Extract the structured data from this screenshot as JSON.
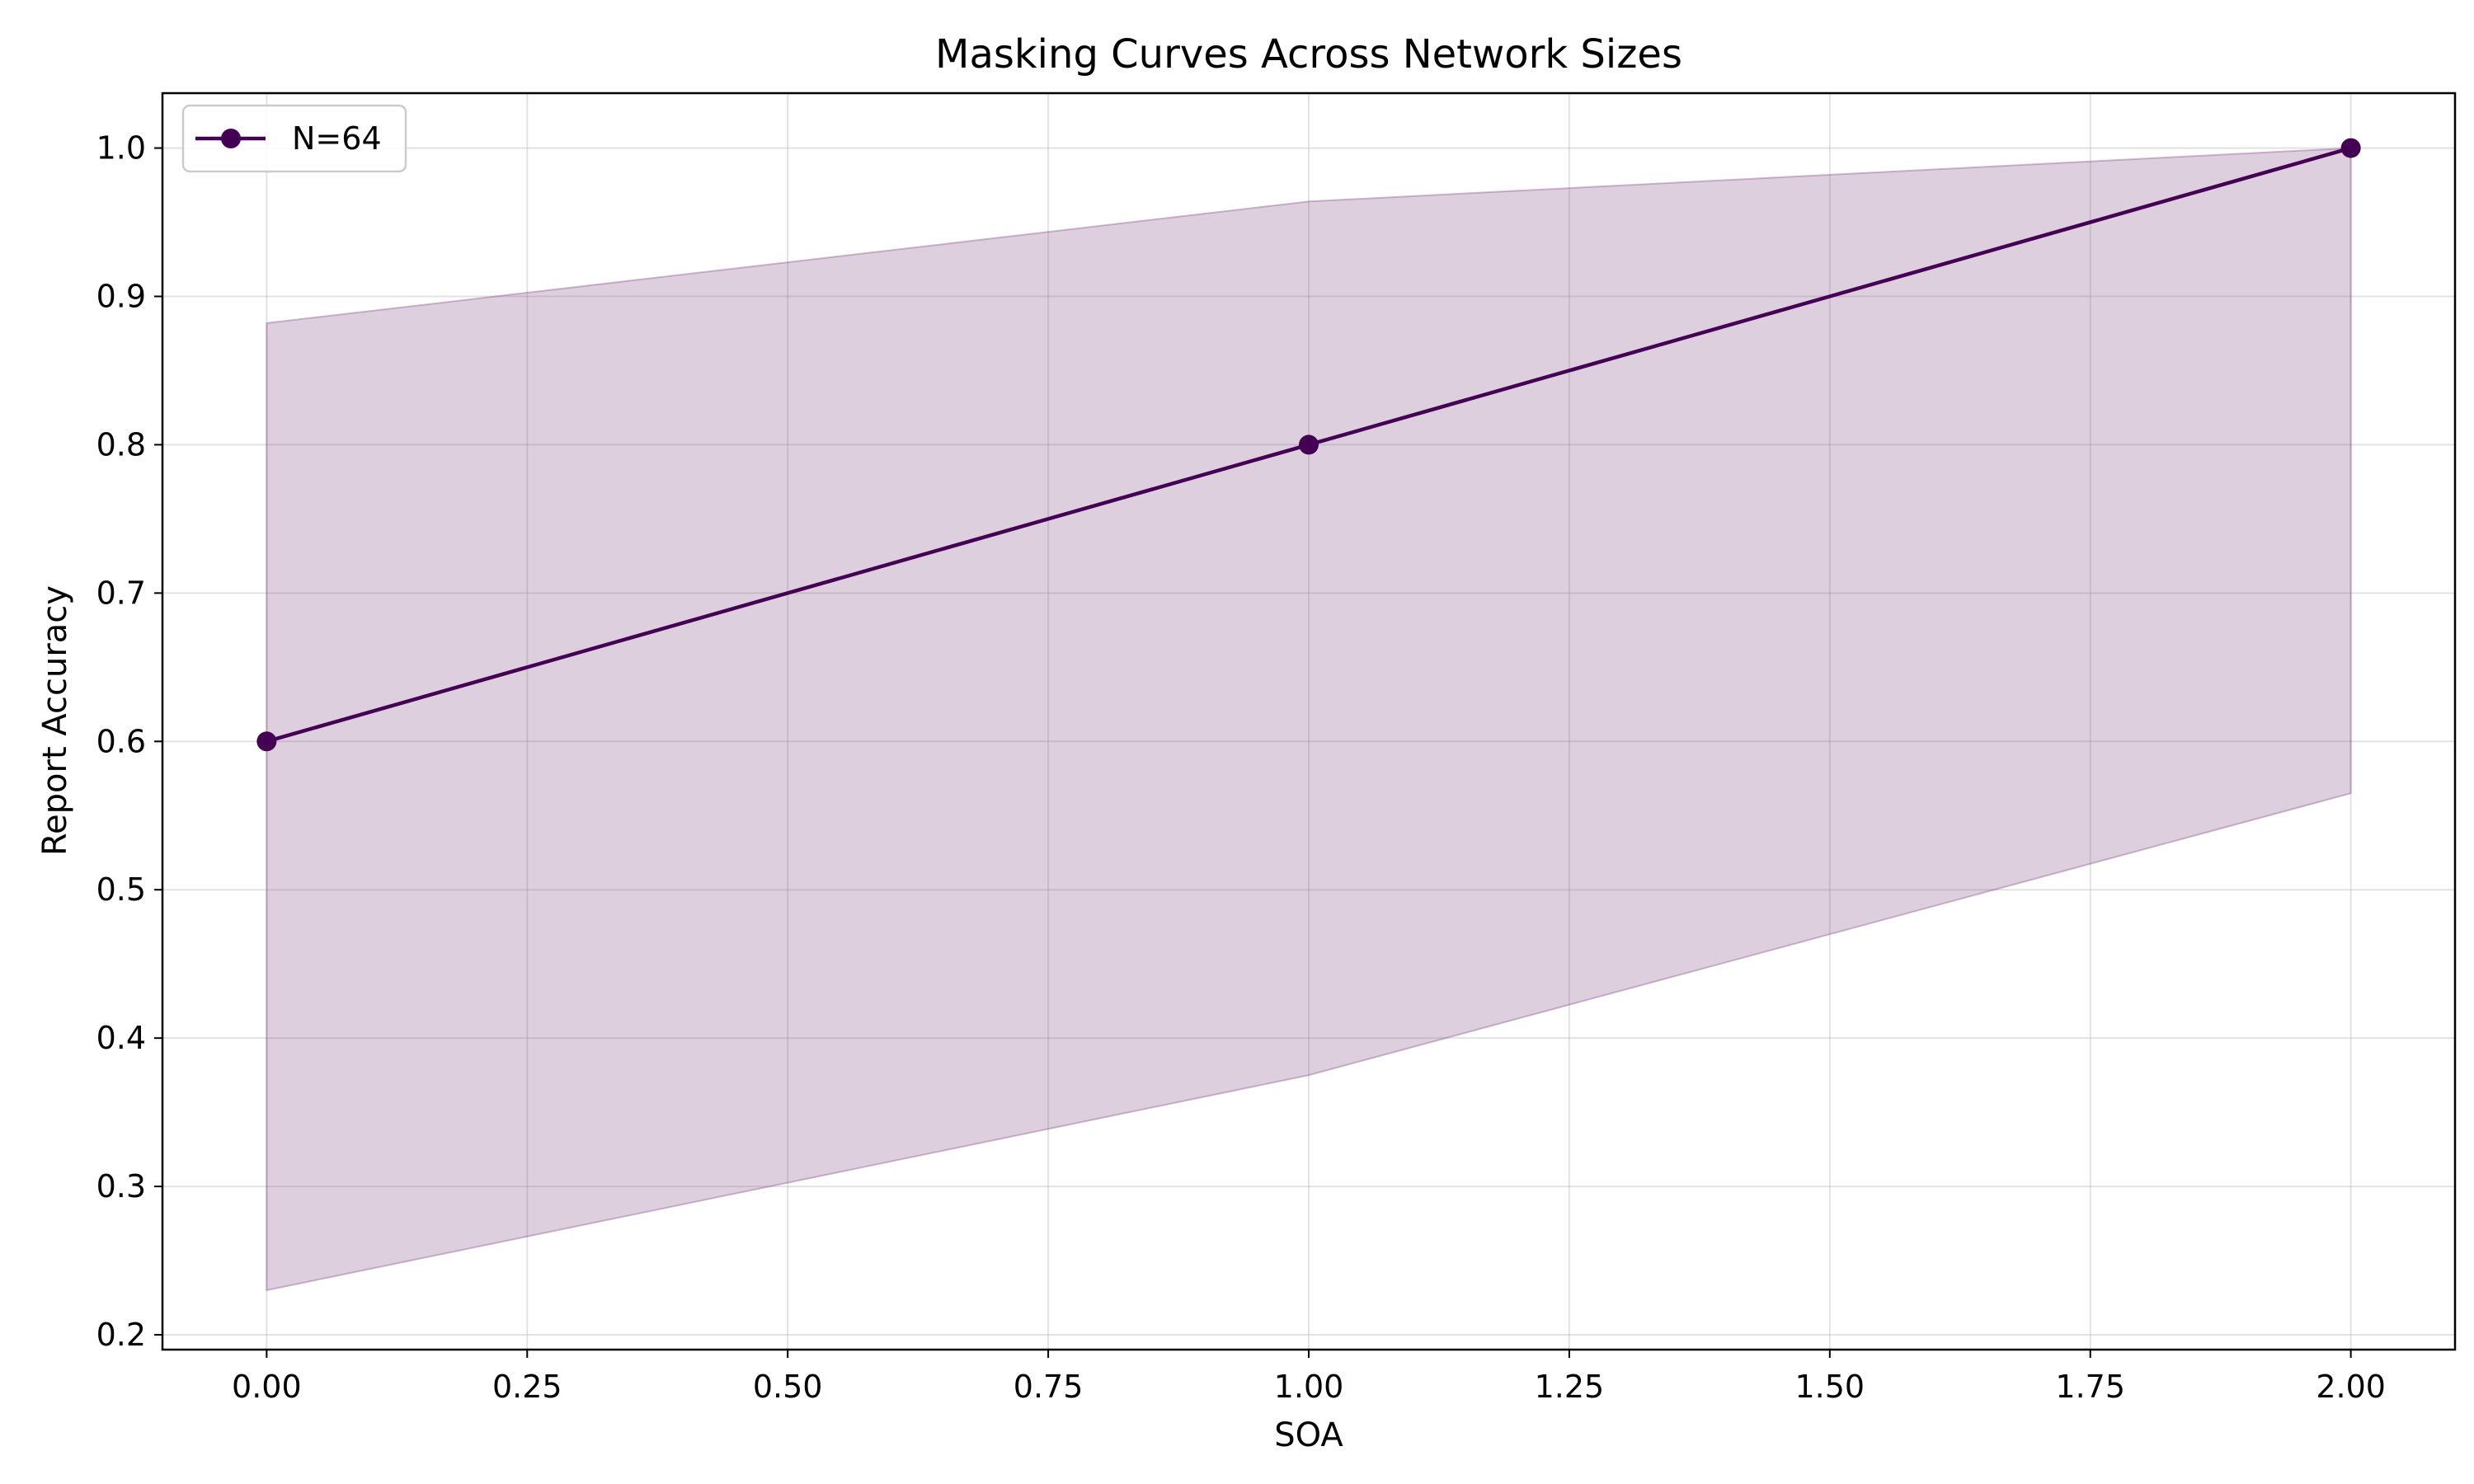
{
  "chart_data": {
    "type": "line",
    "title": "Masking Curves Across Network Sizes",
    "xlabel": "SOA",
    "ylabel": "Report Accuracy",
    "xlim": [
      -0.1,
      2.1
    ],
    "ylim": [
      0.19,
      1.037
    ],
    "xticks": [
      0.0,
      0.25,
      0.5,
      0.75,
      1.0,
      1.25,
      1.5,
      1.75,
      2.0
    ],
    "xtick_labels": [
      "0.00",
      "0.25",
      "0.50",
      "0.75",
      "1.00",
      "1.25",
      "1.50",
      "1.75",
      "2.00"
    ],
    "yticks": [
      0.2,
      0.3,
      0.4,
      0.5,
      0.6,
      0.7,
      0.8,
      0.9,
      1.0
    ],
    "ytick_labels": [
      "0.2",
      "0.3",
      "0.4",
      "0.5",
      "0.6",
      "0.7",
      "0.8",
      "0.9",
      "1.0"
    ],
    "grid": true,
    "legend_position": "top-left",
    "series": [
      {
        "name": "N=64",
        "color": "#440154",
        "marker": "circle",
        "x": [
          0.0,
          1.0,
          2.0
        ],
        "y": [
          0.6,
          0.8,
          1.0
        ],
        "band_lower": [
          0.23,
          0.375,
          0.565
        ],
        "band_upper": [
          0.882,
          0.964,
          1.0
        ],
        "band_color": "#7b3f7f",
        "band_opacity": 0.25
      }
    ]
  }
}
